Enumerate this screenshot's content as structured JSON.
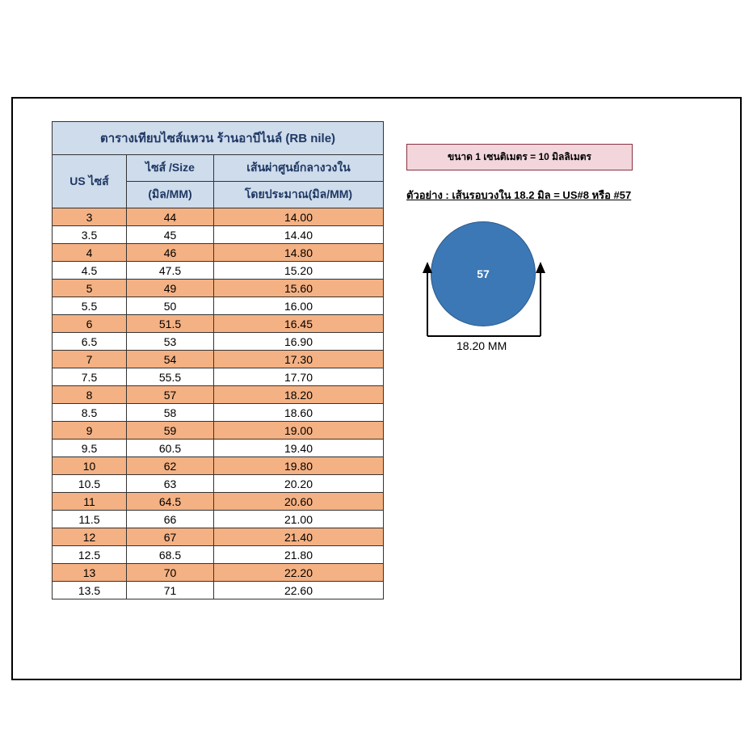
{
  "table": {
    "title": "ตารางเทียบไซส์แหวน  ร้านอาบีไนล์  (RB nile)",
    "headers": {
      "us": "US ไซส์",
      "size_line1": "ไซส์  /Size",
      "size_line2": "(มิล/MM)",
      "dia_line1": "เส้นผ่าศูนย์กลางวงใน",
      "dia_line2": "โดยประมาณ(มิล/MM)"
    },
    "rows": [
      {
        "us": "3",
        "size": "44",
        "dia": "14.00"
      },
      {
        "us": "3.5",
        "size": "45",
        "dia": "14.40"
      },
      {
        "us": "4",
        "size": "46",
        "dia": "14.80"
      },
      {
        "us": "4.5",
        "size": "47.5",
        "dia": "15.20"
      },
      {
        "us": "5",
        "size": "49",
        "dia": "15.60"
      },
      {
        "us": "5.5",
        "size": "50",
        "dia": "16.00"
      },
      {
        "us": "6",
        "size": "51.5",
        "dia": "16.45"
      },
      {
        "us": "6.5",
        "size": "53",
        "dia": "16.90"
      },
      {
        "us": "7",
        "size": "54",
        "dia": "17.30"
      },
      {
        "us": "7.5",
        "size": "55.5",
        "dia": "17.70"
      },
      {
        "us": "8",
        "size": "57",
        "dia": "18.20"
      },
      {
        "us": "8.5",
        "size": "58",
        "dia": "18.60"
      },
      {
        "us": "9",
        "size": "59",
        "dia": "19.00"
      },
      {
        "us": "9.5",
        "size": "60.5",
        "dia": "19.40"
      },
      {
        "us": "10",
        "size": "62",
        "dia": "19.80"
      },
      {
        "us": "10.5",
        "size": "63",
        "dia": "20.20"
      },
      {
        "us": "11",
        "size": "64.5",
        "dia": "20.60"
      },
      {
        "us": "11.5",
        "size": "66",
        "dia": "21.00"
      },
      {
        "us": "12",
        "size": "67",
        "dia": "21.40"
      },
      {
        "us": "12.5",
        "size": "68.5",
        "dia": "21.80"
      },
      {
        "us": "13",
        "size": "70",
        "dia": "22.20"
      },
      {
        "us": "13.5",
        "size": "71",
        "dia": "22.60"
      }
    ],
    "row_colors": {
      "odd": "#f4b183",
      "even": "#ffffff"
    },
    "header_bg": "#cedceb",
    "header_fg": "#1f3864",
    "border_color": "#333333"
  },
  "note": "ขนาด 1 เซนติเมตร  = 10 มิลลิเมตร",
  "note_box": {
    "bg": "#f2d6dc",
    "border": "#8a3040"
  },
  "example": "ตัวอย่าง : เส้นรอบวงใน 18.2 มิล = US#8 หรือ #57",
  "diagram": {
    "circle_label": "57",
    "circle_color": "#3b78b5",
    "dimension_label": "18.20 MM"
  }
}
